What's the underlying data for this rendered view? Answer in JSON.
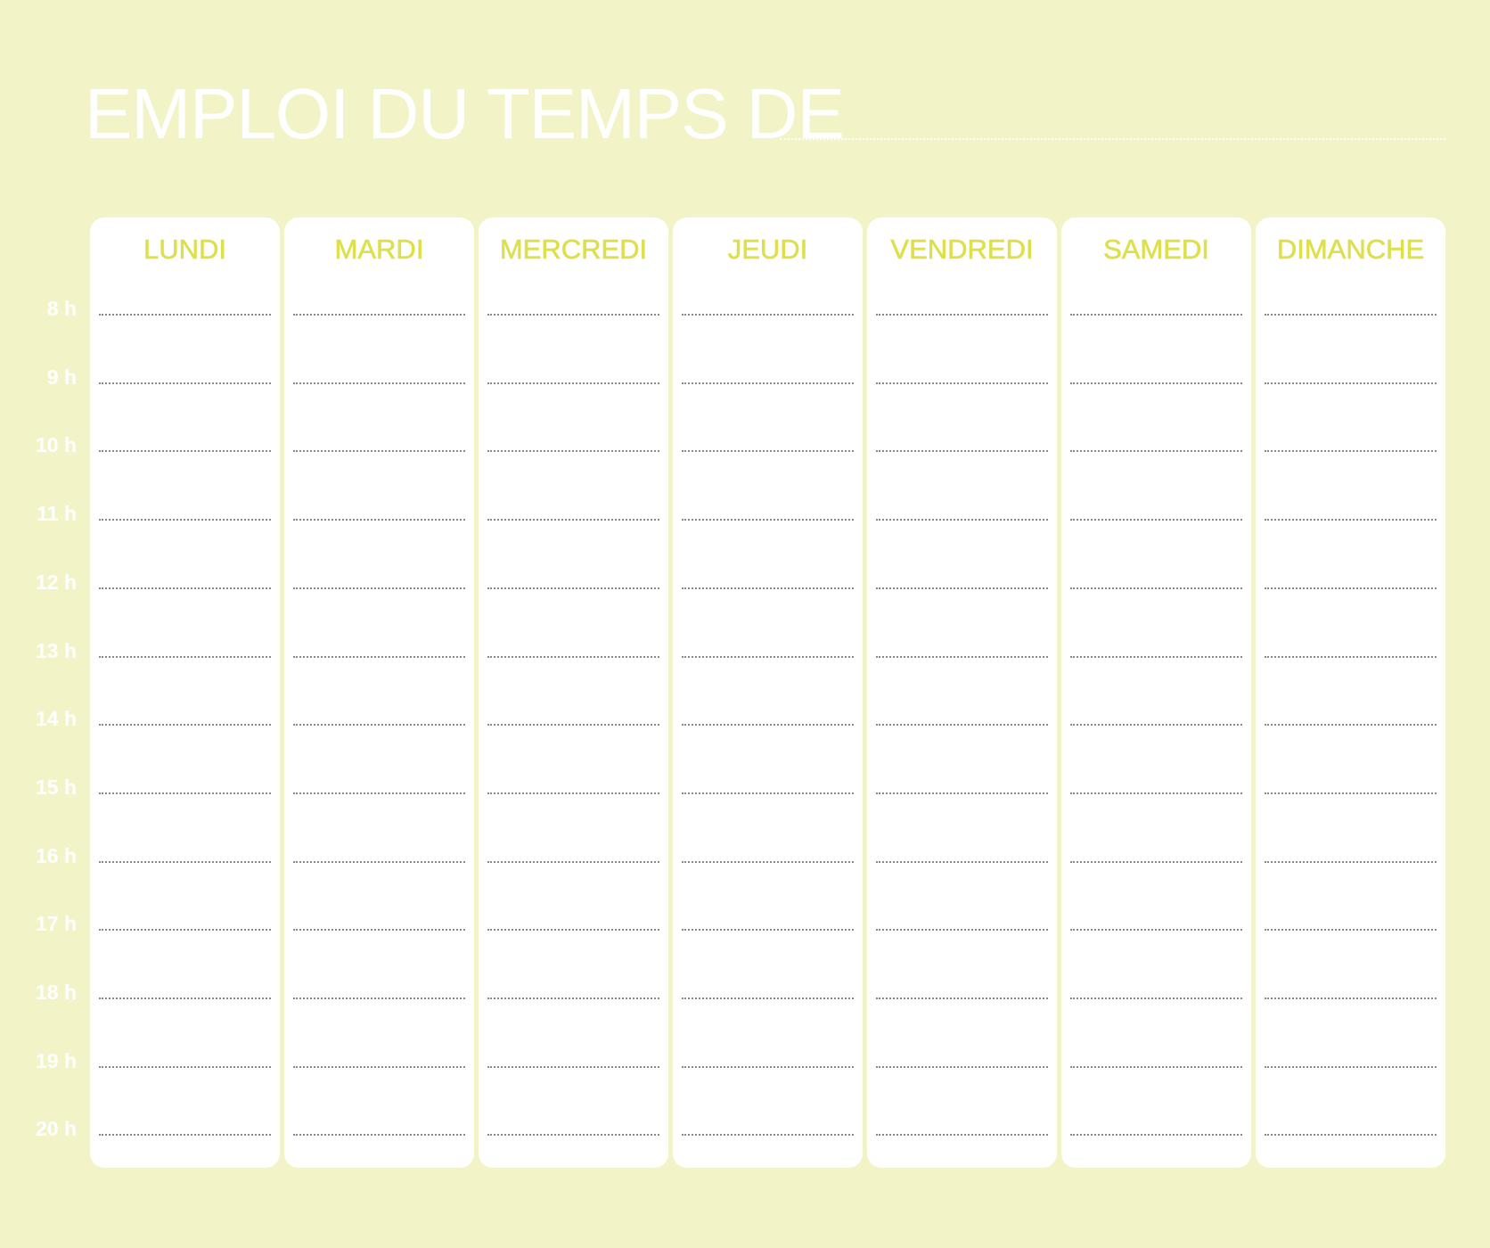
{
  "title": "EMPLOI DU TEMPS DE",
  "days": [
    "LUNDI",
    "MARDI",
    "MERCREDI",
    "JEUDI",
    "VENDREDI",
    "SAMEDI",
    "DIMANCHE"
  ],
  "hours": [
    "8 h",
    "9 h",
    "10 h",
    "11 h",
    "12 h",
    "13 h",
    "14 h",
    "15 h",
    "16 h",
    "17 h",
    "18 h",
    "19 h",
    "20 h"
  ],
  "colors": {
    "background": "#f2f4c8",
    "accent": "#dde04a",
    "card": "#ffffff"
  }
}
